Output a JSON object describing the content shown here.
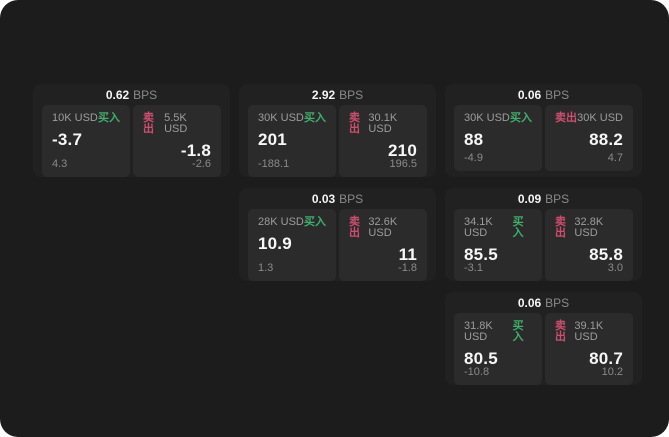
{
  "labels": {
    "bps_unit": "BPS",
    "buy": "买入",
    "sell": "卖出"
  },
  "colors": {
    "buy": "#3fae6a",
    "sell": "#cf4d6f",
    "panel_bg": "#1c1c1c",
    "card_bg": "#212121",
    "tile_bg": "#2b2b2b"
  },
  "cards": [
    {
      "bps": "0.62",
      "buy": {
        "amount": "10K USD",
        "price": "-3.7",
        "sub": "4.3"
      },
      "sell": {
        "amount": "5.5K USD",
        "price": "-1.8",
        "sub": "-2.6"
      }
    },
    {
      "bps": "2.92",
      "buy": {
        "amount": "30K USD",
        "price": "201",
        "sub": "-188.1"
      },
      "sell": {
        "amount": "30.1K USD",
        "price": "210",
        "sub": "196.5"
      }
    },
    {
      "bps": "0.06",
      "buy": {
        "amount": "30K USD",
        "price": "88",
        "sub": "-4.9"
      },
      "sell": {
        "amount": "30K USD",
        "price": "88.2",
        "sub": "4.7"
      }
    },
    {
      "bps": "0.03",
      "buy": {
        "amount": "28K USD",
        "price": "10.9",
        "sub": "1.3"
      },
      "sell": {
        "amount": "32.6K USD",
        "price": "11",
        "sub": "-1.8"
      }
    },
    {
      "bps": "0.09",
      "buy": {
        "amount": "34.1K USD",
        "price": "85.5",
        "sub": "-3.1"
      },
      "sell": {
        "amount": "32.8K USD",
        "price": "85.8",
        "sub": "3.0"
      }
    },
    {
      "bps": "0.06",
      "buy": {
        "amount": "31.8K USD",
        "price": "80.5",
        "sub": "-10.8"
      },
      "sell": {
        "amount": "39.1K USD",
        "price": "80.7",
        "sub": "10.2"
      }
    }
  ]
}
